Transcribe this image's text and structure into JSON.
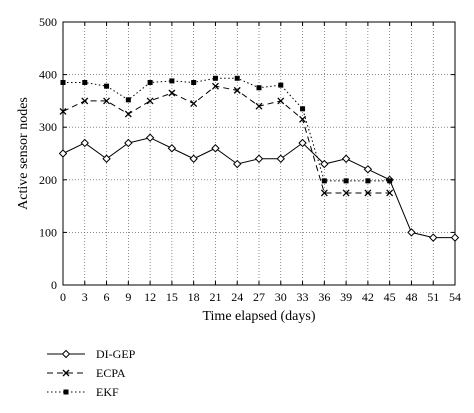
{
  "chart_data": {
    "type": "line",
    "xlabel": "Time elapsed (days)",
    "ylabel": "Active sensor nodes",
    "xlim": [
      0,
      54
    ],
    "ylim": [
      0,
      500
    ],
    "xticks": [
      0,
      3,
      6,
      9,
      12,
      15,
      18,
      21,
      24,
      27,
      30,
      33,
      36,
      39,
      42,
      45,
      48,
      51,
      54
    ],
    "yticks": [
      0,
      100,
      200,
      300,
      400,
      500
    ],
    "grid": true,
    "grid_style": "dotted",
    "legend_placement": "below",
    "series": [
      {
        "name": "DI-GEP",
        "marker": "diamond",
        "line_style": "solid",
        "x": [
          0,
          3,
          6,
          9,
          12,
          15,
          18,
          21,
          24,
          27,
          30,
          33,
          36,
          39,
          42,
          45,
          48,
          51,
          54
        ],
        "y": [
          250,
          270,
          240,
          270,
          280,
          260,
          240,
          260,
          230,
          240,
          240,
          270,
          230,
          240,
          220,
          200,
          100,
          90,
          90
        ]
      },
      {
        "name": "ECPA",
        "marker": "x",
        "line_style": "dashed",
        "x": [
          0,
          3,
          6,
          9,
          12,
          15,
          18,
          21,
          24,
          27,
          30,
          33,
          36,
          39,
          42,
          45
        ],
        "y": [
          330,
          350,
          350,
          325,
          350,
          365,
          345,
          378,
          370,
          340,
          350,
          315,
          175,
          175,
          175,
          175
        ]
      },
      {
        "name": "EKF",
        "marker": "square",
        "line_style": "dotted",
        "x": [
          0,
          3,
          6,
          9,
          12,
          15,
          18,
          21,
          24,
          27,
          30,
          33,
          36,
          39,
          42,
          45
        ],
        "y": [
          385,
          385,
          378,
          352,
          385,
          388,
          385,
          393,
          393,
          375,
          380,
          335,
          198,
          198,
          198,
          198
        ]
      }
    ]
  }
}
